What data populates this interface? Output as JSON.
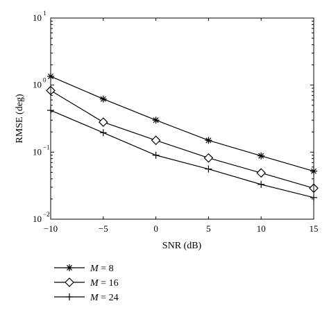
{
  "chart_data": {
    "type": "line",
    "title": "",
    "xlabel": "SNR (dB)",
    "ylabel": "RMSE (deg)",
    "x": [
      -10,
      -5,
      0,
      5,
      10,
      15
    ],
    "xlim": [
      -10,
      15
    ],
    "ylim": [
      0.01,
      10
    ],
    "yscale": "log",
    "grid": false,
    "legend_placement": "bottom-left, below the plot",
    "x_ticks": [
      "-10",
      "-5",
      "0",
      "5",
      "10",
      "15"
    ],
    "y_ticks": [
      {
        "base": "10",
        "exp": "-2"
      },
      {
        "base": "10",
        "exp": "-1"
      },
      {
        "base": "10",
        "exp": "0"
      },
      {
        "base": "10",
        "exp": "1"
      }
    ],
    "series": [
      {
        "name": "M = 8",
        "legend_var": "M",
        "legend_rest": " = 8",
        "marker": "asterisk",
        "values": [
          1.35,
          0.62,
          0.3,
          0.15,
          0.088,
          0.052
        ]
      },
      {
        "name": "M = 16",
        "legend_var": "M",
        "legend_rest": " = 16",
        "marker": "diamond",
        "values": [
          0.83,
          0.28,
          0.15,
          0.082,
          0.049,
          0.029
        ]
      },
      {
        "name": "M = 24",
        "legend_var": "M",
        "legend_rest": " = 24",
        "marker": "plus",
        "values": [
          0.42,
          0.195,
          0.09,
          0.056,
          0.033,
          0.021
        ]
      }
    ],
    "colors": {
      "line": "#000000",
      "background": "#ffffff"
    }
  }
}
